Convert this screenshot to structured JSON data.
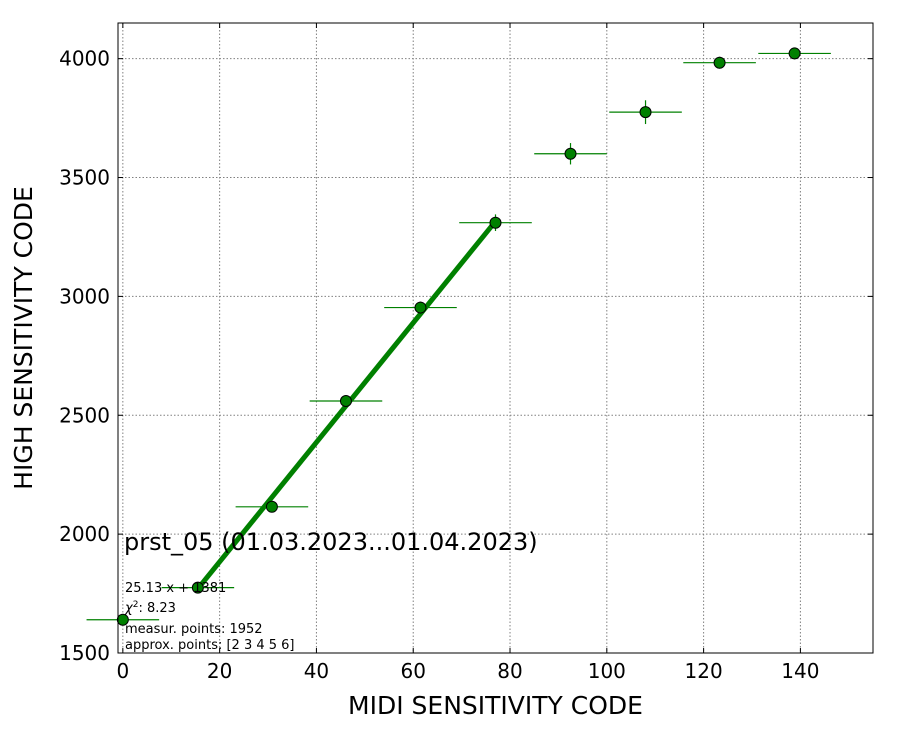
{
  "chart_data": {
    "type": "scatter",
    "title": "",
    "xlabel": "MIDI SENSITIVITY CODE",
    "ylabel": "HIGH SENSITIVITY CODE",
    "xlim": [
      -1,
      155
    ],
    "ylim": [
      1500,
      4150
    ],
    "xticks": [
      0,
      20,
      40,
      60,
      80,
      100,
      120,
      140
    ],
    "yticks": [
      1500,
      2000,
      2500,
      3000,
      3500,
      4000
    ],
    "grid": true,
    "colors": {
      "marker": "#008000",
      "edge": "#000000",
      "fit": "#008000"
    },
    "points": [
      {
        "x": 0,
        "y": 1640,
        "xerr": 7.5,
        "yerr": 15
      },
      {
        "x": 15.5,
        "y": 1775,
        "xerr": 7.5,
        "yerr": 15
      },
      {
        "x": 30.8,
        "y": 2115,
        "xerr": 7.5,
        "yerr": 15
      },
      {
        "x": 46.1,
        "y": 2560,
        "xerr": 7.5,
        "yerr": 20
      },
      {
        "x": 61.5,
        "y": 2953,
        "xerr": 7.5,
        "yerr": 25
      },
      {
        "x": 77,
        "y": 3310,
        "xerr": 7.5,
        "yerr": 35
      },
      {
        "x": 92.5,
        "y": 3600,
        "xerr": 7.5,
        "yerr": 45
      },
      {
        "x": 108,
        "y": 3775,
        "xerr": 7.5,
        "yerr": 50
      },
      {
        "x": 123.3,
        "y": 3983,
        "xerr": 7.5,
        "yerr": 25
      },
      {
        "x": 138.8,
        "y": 4022,
        "xerr": 7.5,
        "yerr": 25
      }
    ],
    "fit": {
      "slope": 25.13,
      "intercept": 1381,
      "x_range": [
        15.5,
        77
      ]
    },
    "annotations": {
      "dataset": "prst_05 (01.03.2023...01.04.2023)",
      "equation": "25.13 x + 1381",
      "chi2_symbol": "χ",
      "chi2_power": "2",
      "chi2_value": ": 8.23",
      "measur_points": "measur. points: 1952",
      "approx_points": "approx. points: [2 3 4 5 6]"
    }
  }
}
